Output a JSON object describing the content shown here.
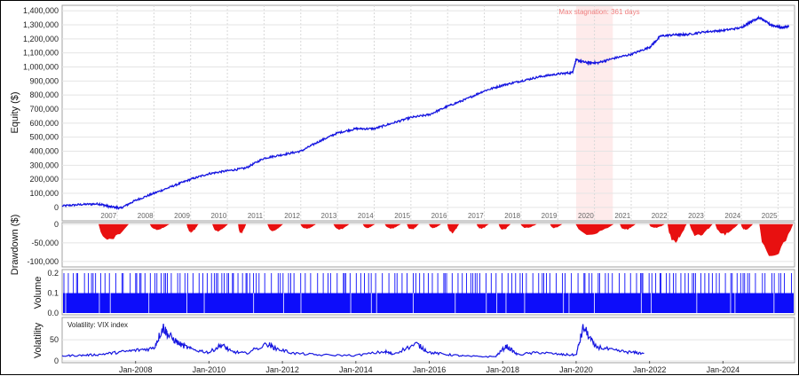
{
  "chart_data": [
    {
      "type": "line",
      "id": "equity",
      "ylabel": "Equity ($)",
      "ylim": [
        -20000,
        1420000
      ],
      "yticks": [
        "0",
        "100,000",
        "200,000",
        "300,000",
        "400,000",
        "500,000",
        "600,000",
        "700,000",
        "800,000",
        "900,000",
        "1,000,000",
        "1,100,000",
        "1,200,000",
        "1,300,000",
        "1,400,000"
      ],
      "year_labels": [
        "2007",
        "2008",
        "2009",
        "2010",
        "2011",
        "2012",
        "2013",
        "2014",
        "2015",
        "2016",
        "2017",
        "2018",
        "2019",
        "2020",
        "2021",
        "2022",
        "2023",
        "2024",
        "2025"
      ],
      "annotation": "Max stagnation: 361 days",
      "stagnation_range": [
        2020.0,
        2021.0
      ],
      "color": "#1515e0",
      "x": [
        2006.0,
        2006.5,
        2007.0,
        2007.3,
        2007.6,
        2008.0,
        2008.5,
        2009.0,
        2009.5,
        2010.0,
        2010.5,
        2011.0,
        2011.5,
        2012.0,
        2012.5,
        2013.0,
        2013.5,
        2014.0,
        2014.5,
        2015.0,
        2015.5,
        2016.0,
        2016.5,
        2017.0,
        2017.5,
        2018.0,
        2018.5,
        2019.0,
        2019.5,
        2019.9,
        2020.0,
        2020.3,
        2020.6,
        2021.0,
        2021.5,
        2022.0,
        2022.3,
        2022.7,
        2023.0,
        2023.5,
        2024.0,
        2024.5,
        2024.8,
        2025.0,
        2025.3,
        2025.6,
        2025.8
      ],
      "y": [
        10000,
        20000,
        25000,
        5000,
        -5000,
        50000,
        100000,
        150000,
        200000,
        240000,
        260000,
        280000,
        350000,
        375000,
        400000,
        470000,
        530000,
        560000,
        560000,
        600000,
        640000,
        660000,
        720000,
        770000,
        830000,
        870000,
        900000,
        930000,
        950000,
        960000,
        1050000,
        1030000,
        1030000,
        1060000,
        1090000,
        1140000,
        1220000,
        1230000,
        1230000,
        1250000,
        1260000,
        1280000,
        1330000,
        1350000,
        1300000,
        1280000,
        1290000
      ]
    },
    {
      "type": "area",
      "id": "drawdown",
      "ylabel": "Drawdown ($)",
      "ylim": [
        -110000,
        0
      ],
      "yticks": [
        "0",
        "-50,000",
        "-100,000"
      ],
      "color": "#e81010",
      "events": [
        [
          2007.0,
          2007.8,
          -45000
        ],
        [
          2008.4,
          2008.9,
          -15000
        ],
        [
          2009.4,
          2009.7,
          -22000
        ],
        [
          2010.1,
          2010.5,
          -20000
        ],
        [
          2010.8,
          2011.0,
          -25000
        ],
        [
          2011.6,
          2012.0,
          -18000
        ],
        [
          2012.5,
          2012.9,
          -12000
        ],
        [
          2013.4,
          2013.8,
          -15000
        ],
        [
          2014.2,
          2014.5,
          -10000
        ],
        [
          2014.8,
          2015.2,
          -12000
        ],
        [
          2015.4,
          2015.7,
          -15000
        ],
        [
          2016.0,
          2016.3,
          -10000
        ],
        [
          2016.5,
          2016.8,
          -25000
        ],
        [
          2017.3,
          2017.6,
          -12000
        ],
        [
          2017.9,
          2018.2,
          -15000
        ],
        [
          2018.5,
          2018.9,
          -10000
        ],
        [
          2019.3,
          2019.6,
          -10000
        ],
        [
          2020.0,
          2021.0,
          -30000
        ],
        [
          2021.2,
          2021.6,
          -15000
        ],
        [
          2022.0,
          2022.4,
          -10000
        ],
        [
          2022.5,
          2023.0,
          -50000
        ],
        [
          2023.1,
          2023.7,
          -35000
        ],
        [
          2023.8,
          2024.4,
          -30000
        ],
        [
          2024.5,
          2024.8,
          -15000
        ],
        [
          2025.0,
          2025.9,
          -100000
        ]
      ]
    },
    {
      "type": "bar",
      "id": "volume",
      "ylabel": "Volume",
      "ylim": [
        0,
        0.2
      ],
      "yticks": [
        "0.0",
        "0.1",
        "0.2"
      ],
      "color": "#0d0dfa",
      "base_value": 0.1,
      "spike_value": 0.2
    },
    {
      "type": "line",
      "id": "volatility",
      "ylabel": "Volatility",
      "legend": "Volatility: VIX index",
      "ylim": [
        0,
        90
      ],
      "yticks": [
        "0",
        "50"
      ],
      "xticks": [
        "Jan-2008",
        "Jan-2010",
        "Jan-2012",
        "Jan-2014",
        "Jan-2016",
        "Jan-2018",
        "Jan-2020",
        "Jan-2022",
        "Jan-2024"
      ],
      "color": "#1515e0",
      "x": [
        2006.0,
        2006.5,
        2007.0,
        2007.5,
        2008.0,
        2008.5,
        2008.75,
        2008.9,
        2009.2,
        2009.5,
        2010.0,
        2010.35,
        2010.6,
        2011.0,
        2011.6,
        2011.8,
        2012.3,
        2013.0,
        2014.0,
        2014.8,
        2015.0,
        2015.65,
        2016.0,
        2016.5,
        2017.0,
        2017.8,
        2018.1,
        2018.4,
        2019.0,
        2019.6,
        2020.0,
        2020.2,
        2020.5,
        2021.0,
        2021.5,
        2021.85
      ],
      "y": [
        12,
        13,
        15,
        20,
        25,
        30,
        80,
        60,
        40,
        28,
        20,
        38,
        22,
        18,
        40,
        30,
        18,
        14,
        13,
        22,
        16,
        40,
        20,
        15,
        11,
        10,
        35,
        15,
        20,
        15,
        14,
        80,
        35,
        25,
        20,
        18
      ]
    }
  ]
}
